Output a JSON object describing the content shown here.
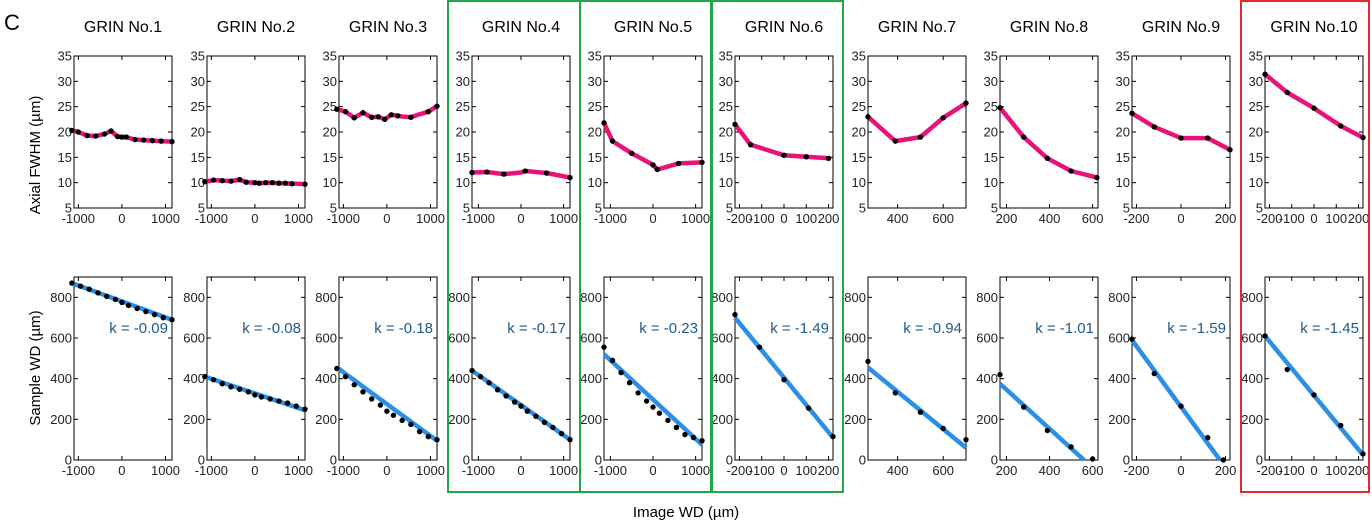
{
  "figure": {
    "panel_letter": "C",
    "shared_xlabel": "Image WD (µm)",
    "row_ylabels": [
      "Axial FWHM (µm)",
      "Sample WD (µm)"
    ],
    "colors": {
      "fwhm_line": "#e8137a",
      "wd_fit_line": "#2b8fe8",
      "points": "#000000",
      "k_text": "#1f5a8a",
      "highlight_green": "#1ea84a",
      "highlight_red": "#e8272b"
    },
    "highlights": [
      {
        "columns": [
          4
        ],
        "color": "green"
      },
      {
        "columns": [
          5
        ],
        "color": "green"
      },
      {
        "columns": [
          6
        ],
        "color": "green"
      },
      {
        "columns": [
          10
        ],
        "color": "red"
      }
    ]
  },
  "chart_data": [
    {
      "type": "line",
      "title": "GRIN No.1",
      "xlim": [
        -1100,
        1150
      ],
      "xticks": [
        -1000,
        0,
        1000
      ],
      "fwhm": {
        "ylim": [
          5,
          35
        ],
        "yticks": [
          5,
          10,
          15,
          20,
          25,
          30,
          35
        ],
        "x": [
          -1150,
          -1000,
          -800,
          -600,
          -400,
          -250,
          -100,
          0,
          100,
          300,
          500,
          700,
          900,
          1150
        ],
        "y": [
          20.3,
          20.0,
          19.3,
          19.2,
          19.6,
          20.2,
          19.1,
          19.0,
          19.0,
          18.5,
          18.4,
          18.3,
          18.2,
          18.1
        ]
      },
      "wd": {
        "ylim": [
          0,
          900
        ],
        "yticks": [
          0,
          200,
          400,
          600,
          800
        ],
        "k_label": "k = -0.09",
        "x": [
          -1150,
          -950,
          -750,
          -550,
          -350,
          -150,
          0,
          150,
          350,
          550,
          750,
          950,
          1150
        ],
        "y": [
          870,
          855,
          840,
          822,
          805,
          790,
          775,
          760,
          745,
          730,
          715,
          700,
          690
        ],
        "fit": [
          [
            -1150,
            870
          ],
          [
            1150,
            690
          ]
        ]
      }
    },
    {
      "type": "line",
      "title": "GRIN No.2",
      "xlim": [
        -1100,
        1150
      ],
      "xticks": [
        -1000,
        0,
        1000
      ],
      "fwhm": {
        "ylim": [
          5,
          35
        ],
        "yticks": [
          5,
          10,
          15,
          20,
          25,
          30,
          35
        ],
        "x": [
          -1150,
          -950,
          -750,
          -550,
          -350,
          -200,
          0,
          100,
          250,
          400,
          550,
          700,
          850,
          1000,
          1150
        ],
        "y": [
          10.2,
          10.5,
          10.4,
          10.3,
          10.6,
          10.1,
          10.0,
          9.9,
          10.0,
          10.0,
          9.9,
          9.9,
          9.8,
          9.8,
          9.7
        ],
        "markers": [
          0,
          1,
          2,
          3,
          4,
          5,
          6,
          7,
          8,
          9,
          10,
          11,
          12,
          14
        ]
      },
      "wd": {
        "ylim": [
          0,
          900
        ],
        "yticks": [
          0,
          200,
          400,
          600,
          800
        ],
        "k_label": "k = -0.08",
        "x": [
          -1150,
          -950,
          -750,
          -550,
          -350,
          -150,
          0,
          150,
          350,
          550,
          750,
          950,
          1150
        ],
        "y": [
          410,
          395,
          375,
          360,
          348,
          335,
          320,
          310,
          300,
          290,
          280,
          265,
          250
        ],
        "fit": [
          [
            -1150,
            410
          ],
          [
            1150,
            245
          ]
        ]
      }
    },
    {
      "type": "line",
      "title": "GRIN No.3",
      "xlim": [
        -1100,
        1150
      ],
      "xticks": [
        -1000,
        0,
        1000
      ],
      "fwhm": {
        "ylim": [
          5,
          35
        ],
        "yticks": [
          5,
          10,
          15,
          20,
          25,
          30,
          35
        ],
        "x": [
          -1150,
          -950,
          -750,
          -550,
          -350,
          -200,
          -50,
          100,
          250,
          400,
          550,
          750,
          950,
          1150
        ],
        "y": [
          24.5,
          24.0,
          22.8,
          23.8,
          22.9,
          23.0,
          22.5,
          23.4,
          23.2,
          23.0,
          22.9,
          23.5,
          24.0,
          25.1
        ],
        "markers": [
          0,
          1,
          2,
          3,
          4,
          5,
          6,
          7,
          8,
          10,
          12,
          13
        ]
      },
      "wd": {
        "ylim": [
          0,
          900
        ],
        "yticks": [
          0,
          200,
          400,
          600,
          800
        ],
        "k_label": "k = -0.18",
        "x": [
          -1150,
          -950,
          -750,
          -550,
          -350,
          -150,
          0,
          150,
          350,
          550,
          750,
          950,
          1150
        ],
        "y": [
          450,
          410,
          370,
          335,
          300,
          270,
          240,
          220,
          195,
          175,
          140,
          115,
          100
        ],
        "fit": [
          [
            -1150,
            455
          ],
          [
            1150,
            95
          ]
        ]
      }
    },
    {
      "type": "line",
      "title": "GRIN No.4",
      "xlim": [
        -1150,
        1150
      ],
      "xticks": [
        -1000,
        0,
        1000
      ],
      "fwhm": {
        "ylim": [
          5,
          35
        ],
        "yticks": [
          5,
          10,
          15,
          20,
          25,
          30,
          35
        ],
        "x": [
          -1150,
          -800,
          -400,
          0,
          100,
          600,
          1150
        ],
        "y": [
          12.0,
          12.1,
          11.7,
          12.0,
          12.3,
          11.9,
          11.0
        ],
        "markers": [
          0,
          1,
          2,
          4,
          5,
          6
        ]
      },
      "wd": {
        "ylim": [
          0,
          900
        ],
        "yticks": [
          0,
          200,
          400,
          600,
          800
        ],
        "k_label": "k = -0.17",
        "x": [
          -1150,
          -950,
          -750,
          -550,
          -350,
          -150,
          0,
          150,
          350,
          550,
          750,
          950,
          1150
        ],
        "y": [
          440,
          410,
          380,
          345,
          315,
          285,
          265,
          240,
          215,
          185,
          160,
          130,
          100
        ],
        "fit": [
          [
            -1150,
            440
          ],
          [
            1150,
            100
          ]
        ]
      }
    },
    {
      "type": "line",
      "title": "GRIN No.5",
      "xlim": [
        -1150,
        1150
      ],
      "xticks": [
        -1000,
        0,
        1000
      ],
      "fwhm": {
        "ylim": [
          5,
          35
        ],
        "yticks": [
          5,
          10,
          15,
          20,
          25,
          30,
          35
        ],
        "x": [
          -1150,
          -950,
          -500,
          0,
          100,
          600,
          1150
        ],
        "y": [
          21.8,
          18.2,
          15.8,
          13.5,
          12.6,
          13.8,
          14.0
        ]
      },
      "wd": {
        "ylim": [
          0,
          900
        ],
        "yticks": [
          0,
          200,
          400,
          600,
          800
        ],
        "k_label": "k = -0.23",
        "x": [
          -1150,
          -950,
          -750,
          -550,
          -350,
          -150,
          0,
          150,
          350,
          550,
          750,
          950,
          1150
        ],
        "y": [
          555,
          490,
          430,
          380,
          330,
          290,
          260,
          230,
          195,
          160,
          125,
          110,
          95
        ],
        "fit": [
          [
            -1150,
            520
          ],
          [
            1150,
            75
          ]
        ]
      }
    },
    {
      "type": "line",
      "title": "GRIN No.6",
      "xlim": [
        -220,
        220
      ],
      "xticks": [
        -200,
        -100,
        0,
        100,
        200
      ],
      "fwhm": {
        "ylim": [
          5,
          35
        ],
        "yticks": [
          5,
          10,
          15,
          20,
          25,
          30,
          35
        ],
        "x": [
          -220,
          -150,
          0,
          100,
          200
        ],
        "y": [
          21.5,
          17.5,
          15.4,
          15.1,
          14.8
        ]
      },
      "wd": {
        "ylim": [
          0,
          900
        ],
        "yticks": [
          0,
          200,
          400,
          600,
          800
        ],
        "k_label": "k = -1.49",
        "x": [
          -220,
          -110,
          0,
          110,
          220
        ],
        "y": [
          715,
          555,
          395,
          255,
          115
        ],
        "fit": [
          [
            -220,
            700
          ],
          [
            220,
            110
          ]
        ]
      }
    },
    {
      "type": "line",
      "title": "GRIN No.7",
      "xlim": [
        270,
        700
      ],
      "xticks": [
        400,
        600
      ],
      "fwhm": {
        "ylim": [
          5,
          35
        ],
        "yticks": [
          5,
          10,
          15,
          20,
          25,
          30,
          35
        ],
        "x": [
          270,
          390,
          500,
          600,
          700
        ],
        "y": [
          23.0,
          18.2,
          19.0,
          22.8,
          25.7
        ]
      },
      "wd": {
        "ylim": [
          0,
          900
        ],
        "yticks": [
          0,
          200,
          400,
          600,
          800
        ],
        "k_label": "k = -0.94",
        "x": [
          270,
          390,
          500,
          600,
          700
        ],
        "y": [
          485,
          330,
          235,
          155,
          100
        ],
        "fit": [
          [
            270,
            455
          ],
          [
            700,
            60
          ]
        ]
      }
    },
    {
      "type": "line",
      "title": "GRIN No.8",
      "xlim": [
        170,
        625
      ],
      "xticks": [
        200,
        400,
        600
      ],
      "fwhm": {
        "ylim": [
          5,
          35
        ],
        "yticks": [
          5,
          10,
          15,
          20,
          25,
          30,
          35
        ],
        "x": [
          170,
          280,
          390,
          500,
          620
        ],
        "y": [
          24.8,
          19.0,
          14.8,
          12.3,
          11.0
        ]
      },
      "wd": {
        "ylim": [
          0,
          900
        ],
        "yticks": [
          0,
          200,
          400,
          600,
          800
        ],
        "k_label": "k = -1.01",
        "x": [
          170,
          280,
          390,
          500,
          600
        ],
        "y": [
          420,
          260,
          145,
          65,
          5
        ],
        "fit": [
          [
            170,
            375
          ],
          [
            560,
            0
          ]
        ]
      }
    },
    {
      "type": "line",
      "title": "GRIN No.9",
      "xlim": [
        -220,
        220
      ],
      "xticks": [
        -200,
        0,
        200
      ],
      "fwhm": {
        "ylim": [
          5,
          35
        ],
        "yticks": [
          5,
          10,
          15,
          20,
          25,
          30,
          35
        ],
        "x": [
          -220,
          -120,
          0,
          120,
          220
        ],
        "y": [
          23.7,
          21.0,
          18.8,
          18.8,
          16.5
        ]
      },
      "wd": {
        "ylim": [
          0,
          900
        ],
        "yticks": [
          0,
          200,
          400,
          600,
          800
        ],
        "k_label": "k = -1.59",
        "x": [
          -220,
          -120,
          0,
          120,
          190
        ],
        "y": [
          595,
          425,
          265,
          110,
          0
        ],
        "fit": [
          [
            -220,
            590
          ],
          [
            175,
            0
          ]
        ]
      }
    },
    {
      "type": "line",
      "title": "GRIN No.10",
      "xlim": [
        -220,
        220
      ],
      "xticks": [
        -200,
        -100,
        0,
        100,
        200
      ],
      "fwhm": {
        "ylim": [
          5,
          35
        ],
        "yticks": [
          5,
          10,
          15,
          20,
          25,
          30,
          35
        ],
        "x": [
          -220,
          -120,
          0,
          120,
          220
        ],
        "y": [
          31.4,
          27.8,
          24.7,
          21.2,
          18.9
        ]
      },
      "wd": {
        "ylim": [
          0,
          900
        ],
        "yticks": [
          0,
          200,
          400,
          600,
          800
        ],
        "k_label": "k = -1.45",
        "x": [
          -220,
          -120,
          0,
          120,
          220
        ],
        "y": [
          610,
          445,
          320,
          170,
          30
        ],
        "fit": [
          [
            -220,
            610
          ],
          [
            220,
            25
          ]
        ]
      }
    }
  ]
}
